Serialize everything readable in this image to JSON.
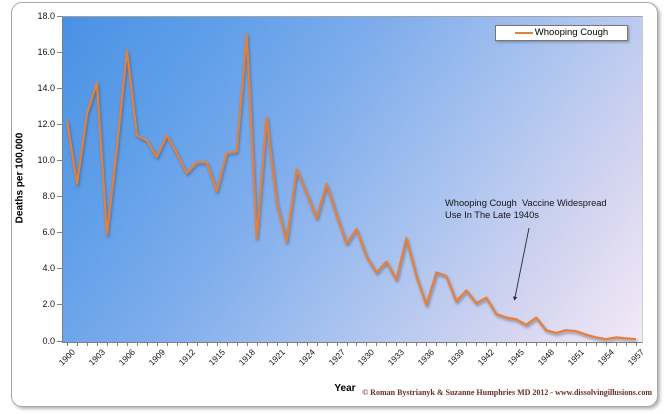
{
  "chart_data": {
    "type": "line",
    "title": "",
    "xlabel": "Year",
    "ylabel": "Deaths per 100,000",
    "ylim": [
      0,
      18
    ],
    "y_tick_step": 2,
    "y_tick_decimals": 1,
    "x_start": 1900,
    "x_end": 1957,
    "x_label_step": 3,
    "grid": false,
    "legend_position": "top-right-inside",
    "plot_background": "gradient blue to pale pink (diagonal)",
    "series": [
      {
        "name": "Whooping Cough",
        "color": "#e5803c",
        "x": [
          1900,
          1901,
          1902,
          1903,
          1904,
          1905,
          1906,
          1907,
          1908,
          1909,
          1910,
          1911,
          1912,
          1913,
          1914,
          1915,
          1916,
          1917,
          1918,
          1919,
          1920,
          1921,
          1922,
          1923,
          1924,
          1925,
          1926,
          1927,
          1928,
          1929,
          1930,
          1931,
          1932,
          1933,
          1934,
          1935,
          1936,
          1937,
          1938,
          1939,
          1940,
          1941,
          1942,
          1943,
          1944,
          1945,
          1946,
          1947,
          1948,
          1949,
          1950,
          1951,
          1952,
          1953,
          1954,
          1955,
          1956,
          1957
        ],
        "values": [
          12.2,
          8.7,
          12.6,
          14.3,
          5.9,
          10.7,
          16.1,
          11.4,
          11.1,
          10.2,
          11.4,
          10.4,
          9.3,
          9.9,
          9.9,
          8.3,
          10.4,
          10.5,
          17.0,
          5.7,
          12.4,
          7.7,
          5.5,
          9.5,
          8.2,
          6.8,
          8.7,
          7.0,
          5.4,
          6.2,
          4.7,
          3.8,
          4.4,
          3.4,
          5.7,
          3.6,
          2.0,
          3.8,
          3.6,
          2.2,
          2.8,
          2.1,
          2.4,
          1.5,
          1.3,
          1.2,
          0.9,
          1.3,
          0.6,
          0.45,
          0.6,
          0.55,
          0.35,
          0.2,
          0.1,
          0.2,
          0.15,
          0.1
        ]
      }
    ],
    "annotation": {
      "line1": "Whooping Cough  Vaccine Widespread",
      "line2": "Use In The Late 1940s",
      "arrow_target_year": 1945
    }
  },
  "legend": {
    "label": "Whooping Cough"
  },
  "footer": {
    "copyright": "© Roman Bystrianyk & Suzanne Humphries MD 2012 - www.dissolvingillusions.com"
  },
  "colors": {
    "line": "#e5803c",
    "plot_top_left": "#4a91e4",
    "plot_bottom_right": "#f4e9f6",
    "copyright_text": "#6b2d26",
    "axis": "#7f7f7f"
  }
}
